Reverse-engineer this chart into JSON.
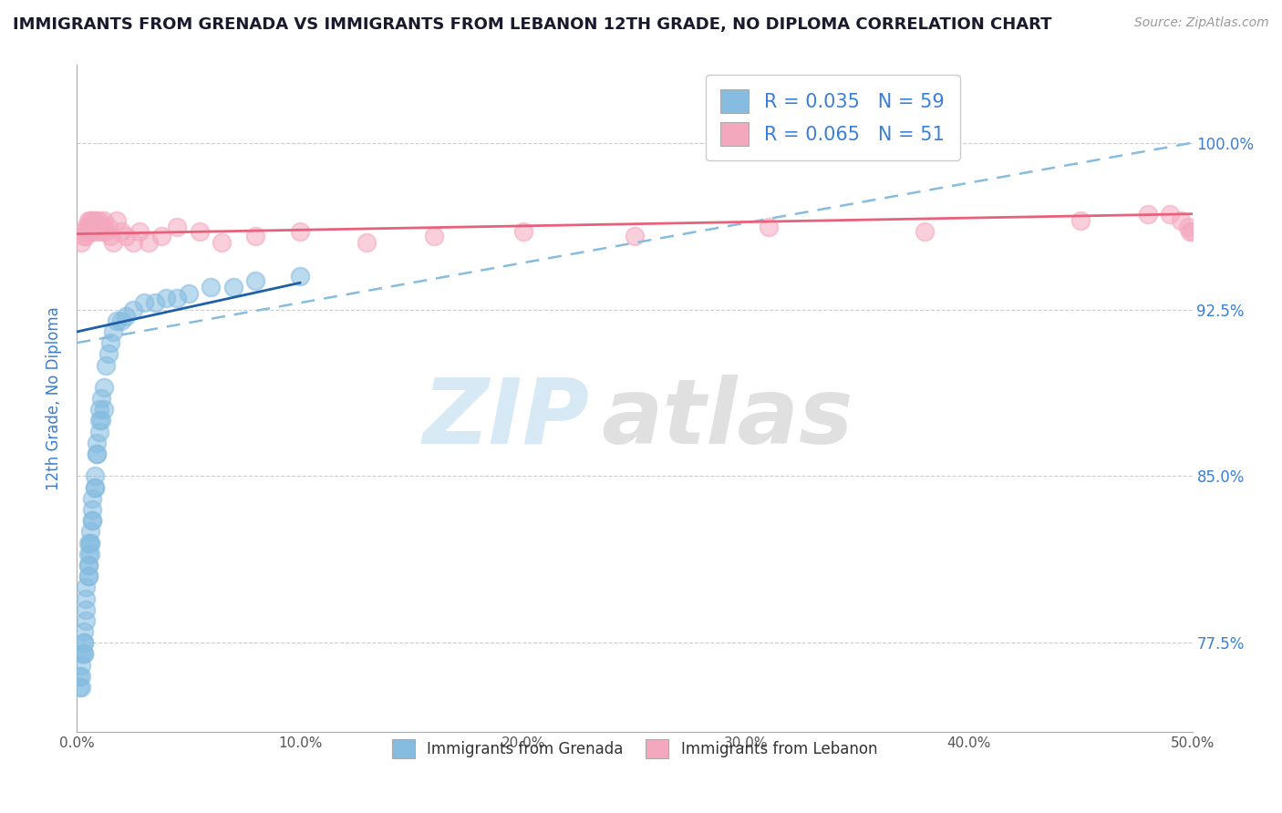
{
  "title": "IMMIGRANTS FROM GRENADA VS IMMIGRANTS FROM LEBANON 12TH GRADE, NO DIPLOMA CORRELATION CHART",
  "source": "Source: ZipAtlas.com",
  "xlabel": "",
  "ylabel": "12th Grade, No Diploma",
  "legend_label1": "Immigrants from Grenada",
  "legend_label2": "Immigrants from Lebanon",
  "r1": 0.035,
  "n1": 59,
  "r2": 0.065,
  "n2": 51,
  "xlim": [
    0.0,
    0.5
  ],
  "ylim": [
    0.735,
    1.035
  ],
  "xticks": [
    0.0,
    0.1,
    0.2,
    0.3,
    0.4,
    0.5
  ],
  "yticks": [
    0.775,
    0.85,
    0.925,
    1.0
  ],
  "ytick_labels": [
    "77.5%",
    "85.0%",
    "92.5%",
    "100.0%"
  ],
  "xtick_labels": [
    "0.0%",
    "10.0%",
    "20.0%",
    "30.0%",
    "40.0%",
    "50.0%"
  ],
  "color_blue": "#85bce0",
  "color_pink": "#f4a8be",
  "line_blue": "#1e5fa8",
  "line_pink": "#e8607a",
  "line_dashed_color": "#85bce0",
  "title_color": "#1a1a2e",
  "axis_label_color": "#3a7fd5",
  "background_color": "#ffffff",
  "grenada_x": [
    0.001,
    0.001,
    0.002,
    0.002,
    0.002,
    0.002,
    0.003,
    0.003,
    0.003,
    0.003,
    0.003,
    0.004,
    0.004,
    0.004,
    0.004,
    0.005,
    0.005,
    0.005,
    0.005,
    0.005,
    0.005,
    0.006,
    0.006,
    0.006,
    0.006,
    0.007,
    0.007,
    0.007,
    0.007,
    0.008,
    0.008,
    0.008,
    0.009,
    0.009,
    0.009,
    0.01,
    0.01,
    0.01,
    0.011,
    0.011,
    0.012,
    0.012,
    0.013,
    0.014,
    0.015,
    0.016,
    0.018,
    0.02,
    0.022,
    0.025,
    0.03,
    0.035,
    0.04,
    0.045,
    0.05,
    0.06,
    0.07,
    0.08,
    0.1
  ],
  "grenada_y": [
    0.76,
    0.755,
    0.77,
    0.765,
    0.76,
    0.755,
    0.775,
    0.77,
    0.775,
    0.77,
    0.78,
    0.785,
    0.79,
    0.8,
    0.795,
    0.805,
    0.81,
    0.815,
    0.82,
    0.81,
    0.805,
    0.815,
    0.82,
    0.825,
    0.82,
    0.83,
    0.835,
    0.84,
    0.83,
    0.845,
    0.85,
    0.845,
    0.86,
    0.865,
    0.86,
    0.875,
    0.87,
    0.88,
    0.885,
    0.875,
    0.89,
    0.88,
    0.9,
    0.905,
    0.91,
    0.915,
    0.92,
    0.92,
    0.922,
    0.925,
    0.928,
    0.928,
    0.93,
    0.93,
    0.932,
    0.935,
    0.935,
    0.938,
    0.94
  ],
  "lebanon_x": [
    0.002,
    0.003,
    0.003,
    0.004,
    0.004,
    0.005,
    0.005,
    0.005,
    0.006,
    0.006,
    0.006,
    0.007,
    0.007,
    0.008,
    0.008,
    0.009,
    0.009,
    0.01,
    0.01,
    0.011,
    0.012,
    0.012,
    0.013,
    0.014,
    0.015,
    0.016,
    0.018,
    0.02,
    0.022,
    0.025,
    0.028,
    0.032,
    0.038,
    0.045,
    0.055,
    0.065,
    0.08,
    0.1,
    0.13,
    0.16,
    0.2,
    0.25,
    0.31,
    0.38,
    0.45,
    0.48,
    0.49,
    0.495,
    0.498,
    0.5,
    0.499
  ],
  "lebanon_y": [
    0.955,
    0.96,
    0.958,
    0.962,
    0.958,
    0.965,
    0.96,
    0.962,
    0.965,
    0.96,
    0.962,
    0.965,
    0.96,
    0.965,
    0.962,
    0.965,
    0.96,
    0.962,
    0.965,
    0.96,
    0.965,
    0.962,
    0.96,
    0.962,
    0.958,
    0.955,
    0.965,
    0.96,
    0.958,
    0.955,
    0.96,
    0.955,
    0.958,
    0.962,
    0.96,
    0.955,
    0.958,
    0.96,
    0.955,
    0.958,
    0.96,
    0.958,
    0.962,
    0.96,
    0.965,
    0.968,
    0.968,
    0.965,
    0.962,
    0.96,
    0.96
  ],
  "blue_line_x0": 0.0,
  "blue_line_x1": 0.1,
  "blue_line_y0": 0.915,
  "blue_line_y1": 0.937,
  "pink_line_x0": 0.0,
  "pink_line_x1": 0.5,
  "pink_line_y0": 0.959,
  "pink_line_y1": 0.968,
  "dashed_line_x0": 0.0,
  "dashed_line_x1": 0.5,
  "dashed_line_y0": 0.91,
  "dashed_line_y1": 1.0
}
